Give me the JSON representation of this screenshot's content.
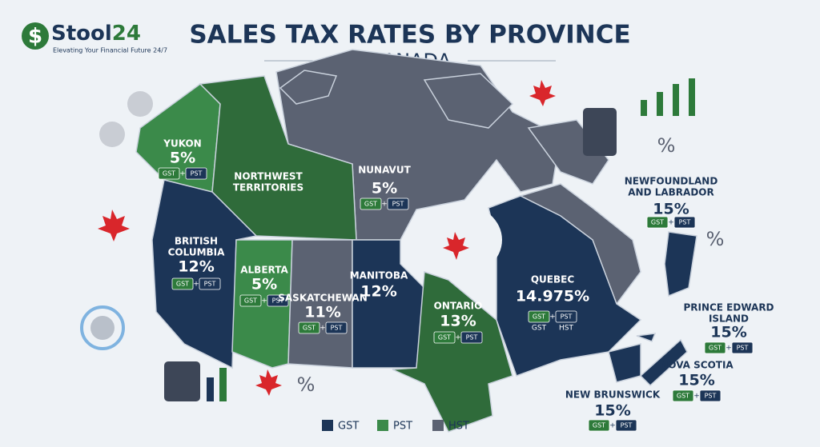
{
  "logo": {
    "symbol": "$",
    "name": "Stool",
    "name_accent": "24",
    "tagline": "Elevating Your Financial Future 24/7"
  },
  "title": "SALES TAX RATES BY PROVINCE",
  "subtitle": "CANADA",
  "badge_join": "+",
  "regions": [
    {
      "name": [
        "YUKON"
      ],
      "rate": "5%",
      "badges": [
        "GST",
        "PST"
      ]
    },
    {
      "name": [
        "NORTHWEST",
        "TERRITORIES"
      ]
    },
    {
      "name": [
        "NUNAVUT"
      ],
      "rate": "5%",
      "badges": [
        "GST",
        "PST"
      ]
    },
    {
      "name": [
        "NEWFOUNDLAND",
        "AND LABRADOR"
      ],
      "rate": "15%",
      "badges": [
        "GST",
        "PST"
      ]
    },
    {
      "name": [
        "BRITISH",
        "COLUMBIA"
      ],
      "rate": "12%",
      "badges": [
        "GST",
        "PST"
      ]
    },
    {
      "name": [
        "ALBERTA"
      ],
      "rate": "5%",
      "badges": [
        "GST",
        "PST"
      ]
    },
    {
      "name": [
        "SASKATCHEWAN"
      ],
      "rate": "11%",
      "badges": [
        "GST",
        "PST"
      ]
    },
    {
      "name": [
        "MANITOBA"
      ],
      "rate": "12%"
    },
    {
      "name": [
        "ONTARIO"
      ],
      "rate": "13%",
      "badges": [
        "GST",
        "PST"
      ]
    },
    {
      "name": [
        "QUEBEC"
      ],
      "rate": "14.975%",
      "badges": [
        "GST",
        "PST"
      ],
      "note": [
        "GST",
        "HST"
      ]
    },
    {
      "name": [
        "PRINCE EDWARD",
        "ISLAND"
      ],
      "rate": "15%",
      "badges": [
        "GST",
        "PST"
      ]
    },
    {
      "name": [
        "NOVA SCOTIA"
      ],
      "rate": "15%",
      "badges": [
        "GST",
        "PST"
      ]
    },
    {
      "name": [
        "NEW BRUNSWICK"
      ],
      "rate": "15%",
      "badges": [
        "GST",
        "PST"
      ]
    }
  ],
  "legend": [
    {
      "label": "GST",
      "color": "#1c3557"
    },
    {
      "label": "PST",
      "color": "#3b8a4a"
    },
    {
      "label": "HST",
      "color": "#5b6272"
    }
  ],
  "decor_symbols": [
    "%",
    "%",
    "%"
  ]
}
